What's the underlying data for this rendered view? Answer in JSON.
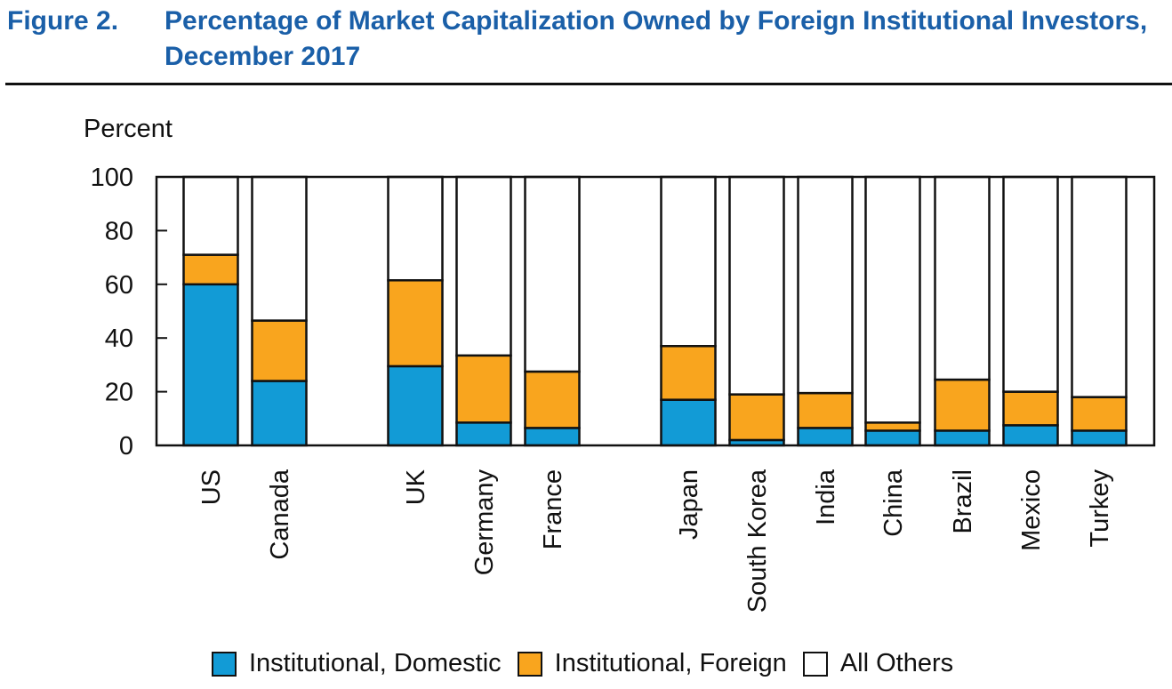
{
  "header": {
    "figure_label": "Figure 2.",
    "title": "Percentage of Market Capitalization Owned by Foreign Institutional Investors, December 2017"
  },
  "chart_data": {
    "type": "bar",
    "stacked": true,
    "ylabel": "Percent",
    "ylim": [
      0,
      100
    ],
    "yticks": [
      0,
      20,
      40,
      60,
      80,
      100
    ],
    "categories": [
      "US",
      "Canada",
      "UK",
      "Germany",
      "France",
      "Japan",
      "South Korea",
      "India",
      "China",
      "Brazil",
      "Mexico",
      "Turkey"
    ],
    "series": [
      {
        "name": "Institutional, Domestic",
        "color": "#129bd6",
        "values": [
          60,
          24,
          29.5,
          8.5,
          6.5,
          17,
          2,
          6.5,
          5.5,
          5.5,
          7.5,
          5.5
        ]
      },
      {
        "name": "Institutional, Foreign",
        "color": "#f9a51e",
        "values": [
          11,
          22.5,
          32,
          25,
          21,
          20,
          17,
          13,
          3,
          19,
          12.5,
          12.5
        ]
      },
      {
        "name": "All Others",
        "color": "#ffffff",
        "values": [
          29,
          53.5,
          38.5,
          66.5,
          72.5,
          63,
          81,
          80.5,
          91.5,
          75.5,
          80,
          82
        ]
      }
    ]
  }
}
